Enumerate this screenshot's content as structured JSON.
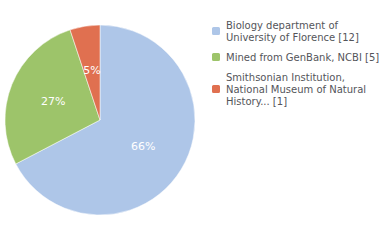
{
  "chart_data": {
    "type": "pie",
    "categories": [
      "Biology department of\nUniversity of Florence [12]",
      "Mined from GenBank, NCBI [5]",
      "Smithsonian Institution,\nNational Museum of Natural\nHistory... [1]"
    ],
    "values": [
      66,
      27,
      5
    ],
    "value_labels": [
      "66%",
      "27%",
      "5%"
    ],
    "data_labels": true,
    "colors": [
      "#aec6e8",
      "#9dc46a",
      "#e07050"
    ],
    "legend": "right"
  }
}
